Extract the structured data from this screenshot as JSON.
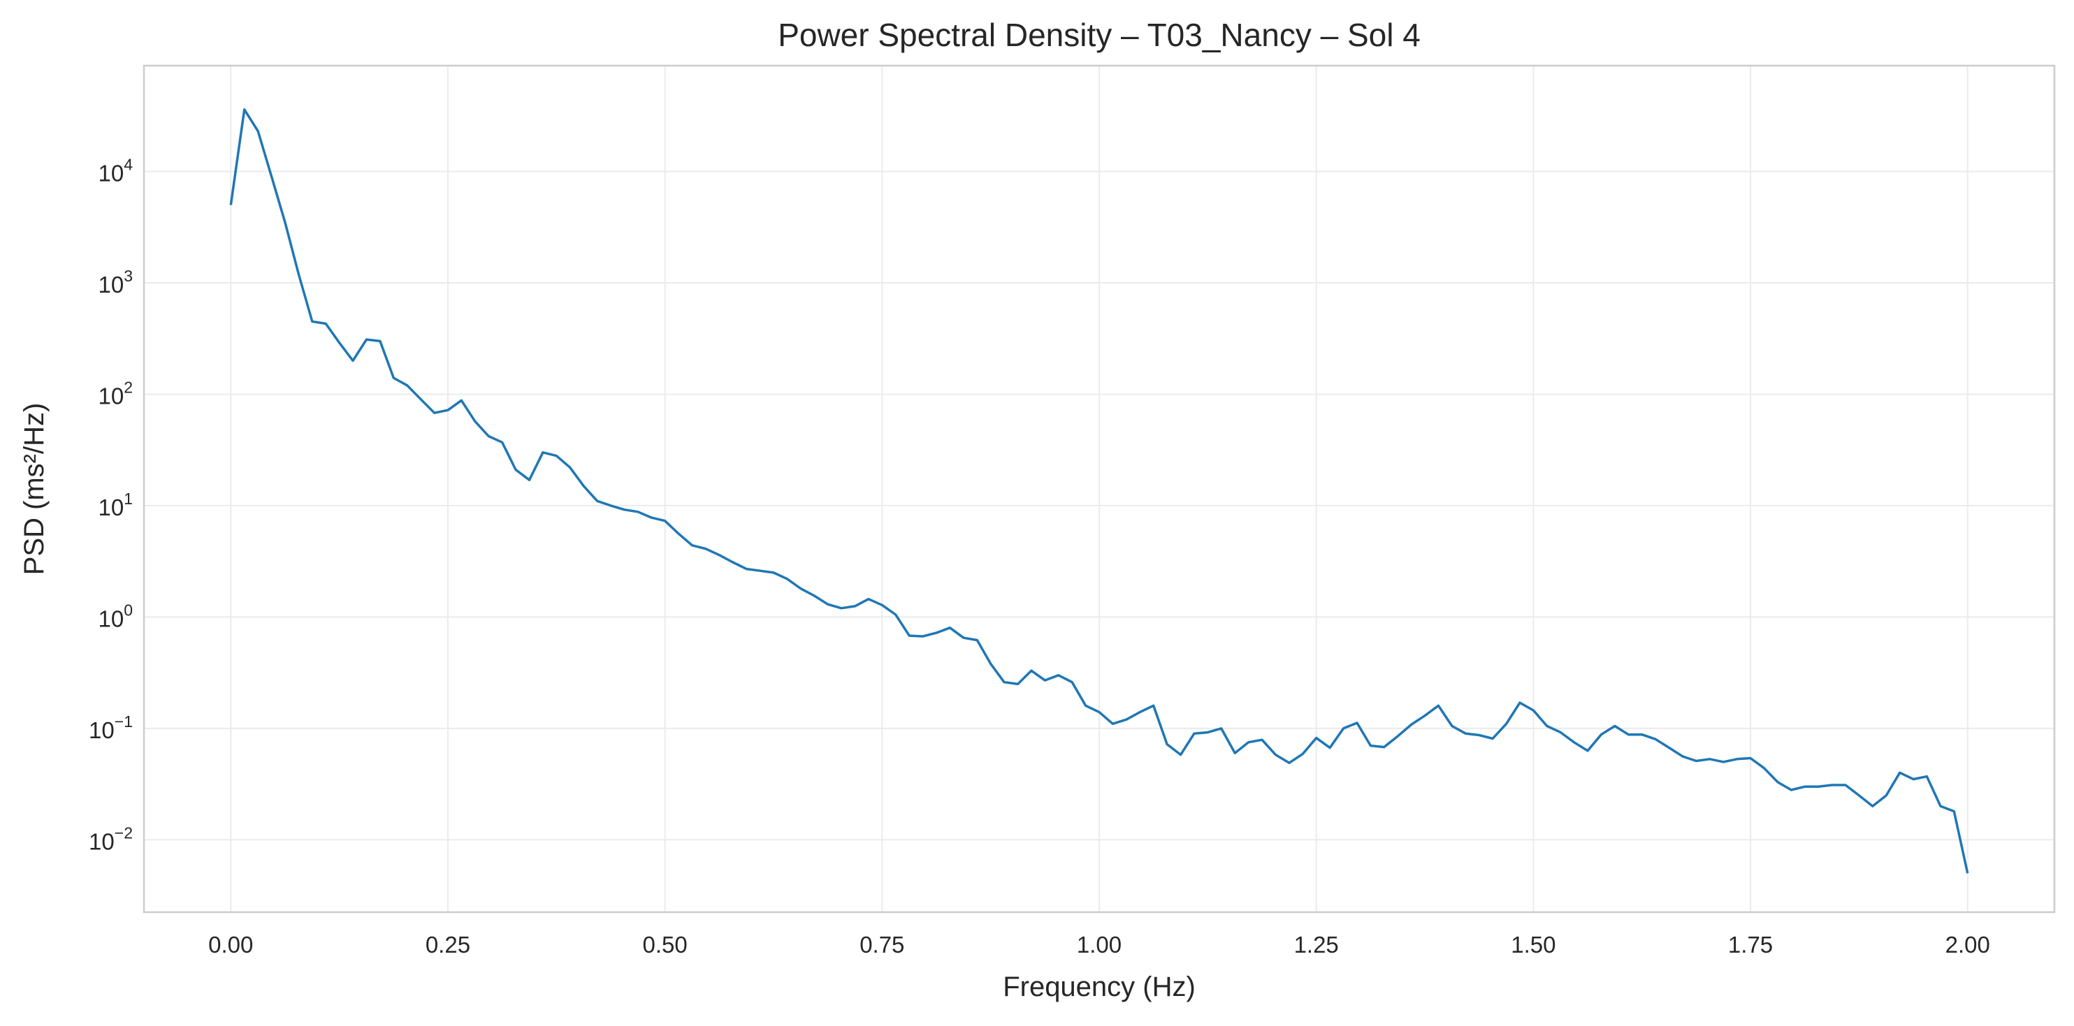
{
  "chart_data": {
    "type": "line",
    "title": "Power Spectral Density – T03_Nancy – Sol 4",
    "xlabel": "Frequency (Hz)",
    "ylabel": "PSD (ms²/Hz)",
    "xlim": [
      -0.1,
      2.1
    ],
    "ylim_log10": [
      -2.65,
      4.95
    ],
    "yscale": "log",
    "grid": true,
    "line_color": "#1f77b4",
    "x_ticks": [
      {
        "value": 0.0,
        "label": "0.00"
      },
      {
        "value": 0.25,
        "label": "0.25"
      },
      {
        "value": 0.5,
        "label": "0.50"
      },
      {
        "value": 0.75,
        "label": "0.75"
      },
      {
        "value": 1.0,
        "label": "1.00"
      },
      {
        "value": 1.25,
        "label": "1.25"
      },
      {
        "value": 1.5,
        "label": "1.50"
      },
      {
        "value": 1.75,
        "label": "1.75"
      },
      {
        "value": 2.0,
        "label": "2.00"
      }
    ],
    "y_ticks": [
      {
        "exp": -2,
        "base": "10",
        "sup": "−2"
      },
      {
        "exp": -1,
        "base": "10",
        "sup": "−1"
      },
      {
        "exp": 0,
        "base": "10",
        "sup": "0"
      },
      {
        "exp": 1,
        "base": "10",
        "sup": "1"
      },
      {
        "exp": 2,
        "base": "10",
        "sup": "2"
      },
      {
        "exp": 3,
        "base": "10",
        "sup": "3"
      },
      {
        "exp": 4,
        "base": "10",
        "sup": "4"
      }
    ],
    "series": [
      {
        "x": [
          0.0,
          0.0156,
          0.0313,
          0.0469,
          0.0625,
          0.0781,
          0.0938,
          0.1094,
          0.125,
          0.1406,
          0.1563,
          0.1719,
          0.1875,
          0.2031,
          0.2188,
          0.2344,
          0.25,
          0.2656,
          0.2813,
          0.2969,
          0.3125,
          0.3281,
          0.3438,
          0.3594,
          0.375,
          0.3906,
          0.4063,
          0.4219,
          0.4375,
          0.4531,
          0.4688,
          0.4844,
          0.5,
          0.5156,
          0.5313,
          0.5469,
          0.5625,
          0.5781,
          0.5938,
          0.6094,
          0.625,
          0.6406,
          0.6563,
          0.6719,
          0.6875,
          0.7031,
          0.7188,
          0.7344,
          0.75,
          0.7656,
          0.7813,
          0.7969,
          0.8125,
          0.8281,
          0.8438,
          0.8594,
          0.875,
          0.8906,
          0.9063,
          0.9219,
          0.9375,
          0.9531,
          0.9688,
          0.9844,
          1.0,
          1.0156,
          1.0313,
          1.0469,
          1.0625,
          1.0781,
          1.0938,
          1.1094,
          1.125,
          1.1406,
          1.1563,
          1.1719,
          1.1875,
          1.2031,
          1.2188,
          1.2344,
          1.25,
          1.2656,
          1.2813,
          1.2969,
          1.3125,
          1.3281,
          1.3438,
          1.3594,
          1.375,
          1.3906,
          1.4063,
          1.4219,
          1.4375,
          1.4531,
          1.4688,
          1.4844,
          1.5,
          1.5156,
          1.5313,
          1.5469,
          1.5625,
          1.5781,
          1.5938,
          1.6094,
          1.625,
          1.6406,
          1.6563,
          1.6719,
          1.6875,
          1.7031,
          1.7188,
          1.7344,
          1.75,
          1.7656,
          1.7813,
          1.7969,
          1.8125,
          1.8281,
          1.8438,
          1.8594,
          1.875,
          1.8906,
          1.9063,
          1.9219,
          1.9375,
          1.9531,
          1.9688,
          1.9844,
          2.0
        ],
        "y": [
          5000,
          36000,
          23000,
          9000,
          3500,
          1200,
          450,
          430,
          290,
          200,
          310,
          300,
          140,
          120,
          90,
          68,
          72,
          88,
          57,
          42,
          37,
          21,
          17,
          30,
          28,
          22,
          15,
          11,
          10,
          9.2,
          8.8,
          7.8,
          7.3,
          5.6,
          4.4,
          4.1,
          3.6,
          3.1,
          2.7,
          2.6,
          2.5,
          2.2,
          1.8,
          1.55,
          1.3,
          1.2,
          1.25,
          1.45,
          1.28,
          1.05,
          0.68,
          0.67,
          0.72,
          0.8,
          0.65,
          0.62,
          0.38,
          0.26,
          0.25,
          0.33,
          0.27,
          0.3,
          0.26,
          0.16,
          0.14,
          0.11,
          0.12,
          0.14,
          0.16,
          0.072,
          0.058,
          0.09,
          0.092,
          0.1,
          0.06,
          0.075,
          0.079,
          0.058,
          0.049,
          0.059,
          0.082,
          0.067,
          0.1,
          0.112,
          0.07,
          0.068,
          0.085,
          0.108,
          0.13,
          0.16,
          0.105,
          0.09,
          0.087,
          0.081,
          0.11,
          0.17,
          0.145,
          0.105,
          0.092,
          0.075,
          0.063,
          0.088,
          0.105,
          0.088,
          0.088,
          0.08,
          0.067,
          0.056,
          0.051,
          0.053,
          0.05,
          0.053,
          0.054,
          0.044,
          0.033,
          0.028,
          0.03,
          0.03,
          0.031,
          0.031,
          0.025,
          0.02,
          0.025,
          0.04,
          0.035,
          0.037,
          0.02,
          0.018,
          0.005
        ]
      }
    ]
  }
}
